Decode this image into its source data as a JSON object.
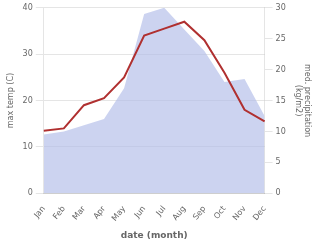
{
  "chart_data": {
    "type": "line",
    "categories": [
      "Jan",
      "Feb",
      "Mar",
      "Apr",
      "May",
      "Jun",
      "Jul",
      "Aug",
      "Sep",
      "Oct",
      "Nov",
      "Dec"
    ],
    "xlabel": "date (month)",
    "ylabel": "max temp (C)",
    "y2label": "med. precipitation\n(kg/m2)",
    "ylim": [
      0,
      40
    ],
    "yticks": [
      0,
      10,
      20,
      30,
      40
    ],
    "y2lim": [
      0,
      30
    ],
    "y2ticks": [
      0,
      5,
      10,
      15,
      20,
      25,
      30
    ],
    "grid": true,
    "series": [
      {
        "type": "area",
        "axis": "y2",
        "color": "#b0bce8",
        "values": [
          9.5,
          10.0,
          11.0,
          12.0,
          17.0,
          29.0,
          30.0,
          26.5,
          23.0,
          18.0,
          18.5,
          12.5
        ]
      },
      {
        "type": "line",
        "color": "#b03030",
        "values": [
          13.5,
          14.0,
          19.0,
          20.5,
          25.0,
          34.0,
          35.5,
          37.0,
          33.0,
          26.0,
          18.0,
          15.5
        ]
      }
    ]
  }
}
